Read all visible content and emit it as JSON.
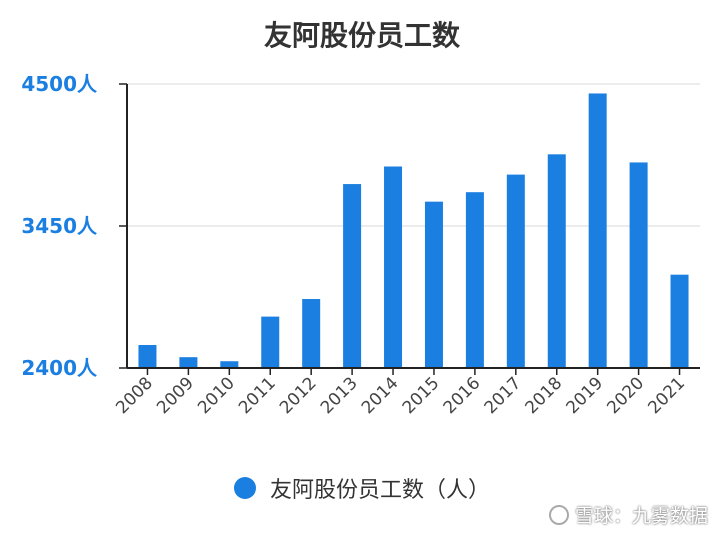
{
  "chart_data": {
    "type": "bar",
    "title": "友阿股份员工数",
    "categories": [
      "2008",
      "2009",
      "2010",
      "2011",
      "2012",
      "2013",
      "2014",
      "2015",
      "2016",
      "2017",
      "2018",
      "2019",
      "2020",
      "2021"
    ],
    "series": [
      {
        "name": "友阿股份员工数（人）",
        "values": [
          2570,
          2480,
          2450,
          2780,
          2910,
          3760,
          3890,
          3630,
          3700,
          3830,
          3980,
          4430,
          3920,
          3090
        ]
      }
    ],
    "ylim": [
      2400,
      4500
    ],
    "yticks": [
      {
        "value": 2400,
        "label": "2400人"
      },
      {
        "value": 3450,
        "label": "3450人"
      },
      {
        "value": 4500,
        "label": "4500人"
      }
    ],
    "grid": true,
    "legend": "bottom",
    "colors": {
      "bar": "#1a7fe0",
      "tick": "#1a7fe0",
      "grid": "#d9d9d9",
      "axis": "#222222"
    }
  },
  "watermark": "雪球：九雾数据"
}
